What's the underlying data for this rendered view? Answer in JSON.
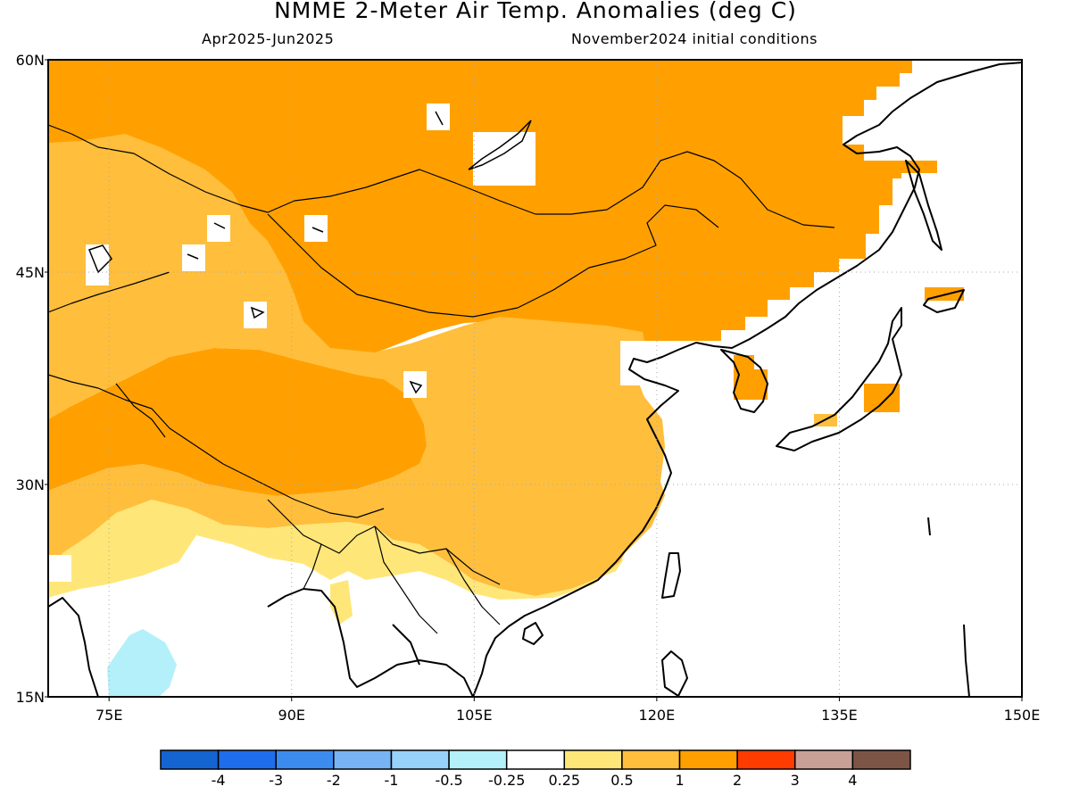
{
  "header": {
    "title": "NMME 2-Meter Air Temp. Anomalies (deg C)",
    "period": "Apr2025-Jun2025",
    "initial_conditions": "November2024 initial conditions"
  },
  "map": {
    "lon_range": [
      70,
      150
    ],
    "lat_range": [
      15,
      60
    ],
    "lat_ticks": [
      {
        "value": 60,
        "label": "60N"
      },
      {
        "value": 45,
        "label": "45N"
      },
      {
        "value": 30,
        "label": "30N"
      },
      {
        "value": 15,
        "label": "15N"
      }
    ],
    "lon_ticks": [
      {
        "value": 75,
        "label": "75E"
      },
      {
        "value": 90,
        "label": "90E"
      },
      {
        "value": 105,
        "label": "105E"
      },
      {
        "value": 120,
        "label": "120E"
      },
      {
        "value": 135,
        "label": "135E"
      },
      {
        "value": 150,
        "label": "150E"
      }
    ],
    "grid": "dotted",
    "dominant_categories": [
      "1 to 2 (northern Asia, Mongolia, Tibet)",
      "0.5 to 1 (central/southern China, Central Asia)",
      "0.25 to 0.5 (southern fringe)",
      "-0.5 to -0.25 (southern India)"
    ]
  },
  "colorbar": {
    "colors": [
      "#1464d2",
      "#1e6eeb",
      "#3c8cf0",
      "#78b4f5",
      "#96d2fa",
      "#b4f0fa",
      "#ffffff",
      "#ffe678",
      "#ffbe3c",
      "#ffa000",
      "#ff3c00",
      "#c8a096",
      "#7d5546"
    ],
    "labels": [
      "-4",
      "-3",
      "-2",
      "-1",
      "-0.5",
      "-0.25",
      "0.25",
      "0.5",
      "1",
      "2",
      "3",
      "4"
    ]
  }
}
